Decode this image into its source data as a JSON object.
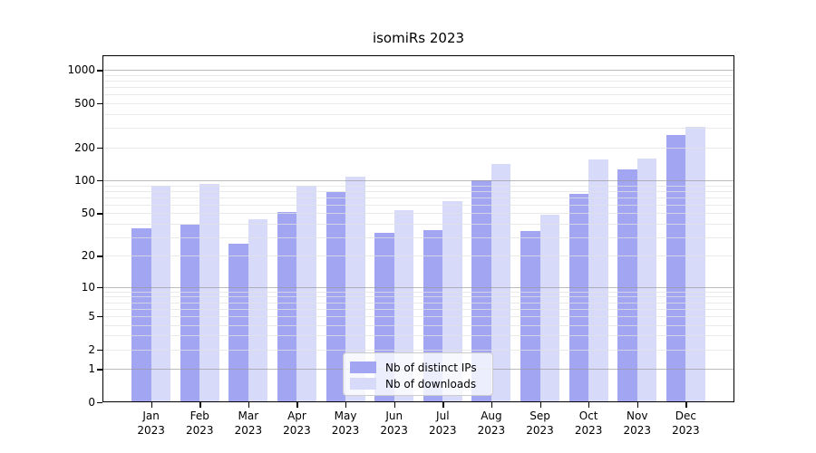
{
  "title": "isomiRs 2023",
  "chart_data": {
    "type": "bar",
    "title": "isomiRs 2023",
    "months": [
      "Jan",
      "Feb",
      "Mar",
      "Apr",
      "May",
      "Jun",
      "Jul",
      "Aug",
      "Sep",
      "Oct",
      "Nov",
      "Dec"
    ],
    "year_label": "2023",
    "categories": [
      "Jan 2023",
      "Feb 2023",
      "Mar 2023",
      "Apr 2023",
      "May 2023",
      "Jun 2023",
      "Jul 2023",
      "Aug 2023",
      "Sep 2023",
      "Oct 2023",
      "Nov 2023",
      "Dec 2023"
    ],
    "series": [
      {
        "name": "Nb of distinct IPs",
        "color": "#a2a5f2",
        "values": [
          36,
          39,
          26,
          51,
          78,
          33,
          35,
          100,
          34,
          75,
          125,
          260
        ]
      },
      {
        "name": "Nb of downloads",
        "color": "#d8daf9",
        "values": [
          89,
          93,
          44,
          90,
          107,
          53,
          65,
          141,
          48,
          155,
          158,
          308
        ]
      }
    ],
    "y_ticks": [
      0,
      1,
      2,
      5,
      10,
      20,
      50,
      100,
      200,
      500,
      1000
    ],
    "yscale": "symlog",
    "ylim": [
      0,
      1360
    ],
    "xlabel": "",
    "ylabel": "",
    "grid": true,
    "grid_over_bars": true,
    "legend_position": "lower-center",
    "colors": {
      "major_grid": "rgba(150,150,150,0.65)",
      "minor_grid": "rgba(226,226,226,0.75)",
      "axis": "#000000",
      "background": "#ffffff"
    }
  }
}
